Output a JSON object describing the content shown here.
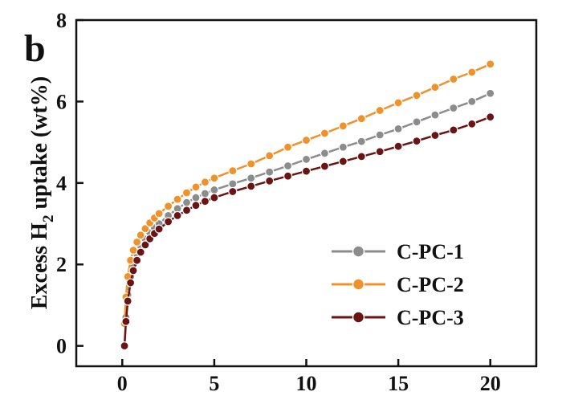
{
  "chart_data": {
    "type": "scatter",
    "panel_label": "b",
    "xlabel": "",
    "ylabel_parts": [
      "Excess H",
      "2",
      " uptake (wt%)"
    ],
    "xlim": [
      -2.5,
      22.5
    ],
    "ylim": [
      -0.5,
      8
    ],
    "xticks": [
      0,
      5,
      10,
      15,
      20
    ],
    "yticks": [
      0,
      2,
      4,
      6,
      8
    ],
    "legend_position": "bottom-right",
    "series": [
      {
        "name": "C-PC-1",
        "color": "#8c8c8c",
        "x": [
          0.12,
          0.2,
          0.3,
          0.45,
          0.6,
          0.8,
          1.0,
          1.25,
          1.5,
          1.75,
          2.0,
          2.5,
          3.0,
          3.5,
          4.0,
          4.5,
          5.0,
          6.0,
          7.0,
          8.0,
          9.0,
          10.0,
          11.0,
          12.0,
          13.0,
          14.0,
          15.0,
          16.0,
          17.0,
          18.0,
          19.0,
          20.0
        ],
        "y": [
          0.0,
          0.7,
          1.25,
          1.7,
          2.0,
          2.25,
          2.45,
          2.62,
          2.78,
          2.9,
          3.0,
          3.2,
          3.37,
          3.52,
          3.64,
          3.74,
          3.83,
          3.98,
          4.12,
          4.27,
          4.42,
          4.58,
          4.73,
          4.88,
          5.02,
          5.18,
          5.33,
          5.5,
          5.67,
          5.84,
          6.0,
          6.2
        ]
      },
      {
        "name": "C-PC-2",
        "color": "#f0922b",
        "x": [
          0.12,
          0.2,
          0.3,
          0.45,
          0.6,
          0.8,
          1.0,
          1.25,
          1.5,
          1.75,
          2.0,
          2.5,
          3.0,
          3.5,
          4.0,
          4.5,
          5.0,
          6.0,
          7.0,
          8.0,
          9.0,
          10.0,
          11.0,
          12.0,
          13.0,
          14.0,
          15.0,
          16.0,
          17.0,
          18.0,
          19.0,
          20.0
        ],
        "y": [
          0.55,
          1.2,
          1.7,
          2.1,
          2.35,
          2.55,
          2.72,
          2.88,
          3.02,
          3.14,
          3.25,
          3.43,
          3.6,
          3.76,
          3.9,
          4.02,
          4.12,
          4.3,
          4.47,
          4.67,
          4.88,
          5.05,
          5.22,
          5.4,
          5.58,
          5.78,
          5.97,
          6.15,
          6.35,
          6.55,
          6.72,
          6.92
        ]
      },
      {
        "name": "C-PC-3",
        "color": "#6b1414",
        "x": [
          0.12,
          0.2,
          0.3,
          0.45,
          0.6,
          0.8,
          1.0,
          1.25,
          1.5,
          1.75,
          2.0,
          2.5,
          3.0,
          3.5,
          4.0,
          4.5,
          5.0,
          6.0,
          7.0,
          8.0,
          9.0,
          10.0,
          11.0,
          12.0,
          13.0,
          14.0,
          15.0,
          16.0,
          17.0,
          18.0,
          19.0,
          20.0
        ],
        "y": [
          0.0,
          0.6,
          1.1,
          1.55,
          1.85,
          2.1,
          2.3,
          2.48,
          2.63,
          2.76,
          2.87,
          3.05,
          3.2,
          3.33,
          3.45,
          3.55,
          3.64,
          3.79,
          3.92,
          4.05,
          4.17,
          4.29,
          4.41,
          4.53,
          4.65,
          4.77,
          4.9,
          5.03,
          5.17,
          5.3,
          5.45,
          5.62
        ]
      }
    ]
  }
}
